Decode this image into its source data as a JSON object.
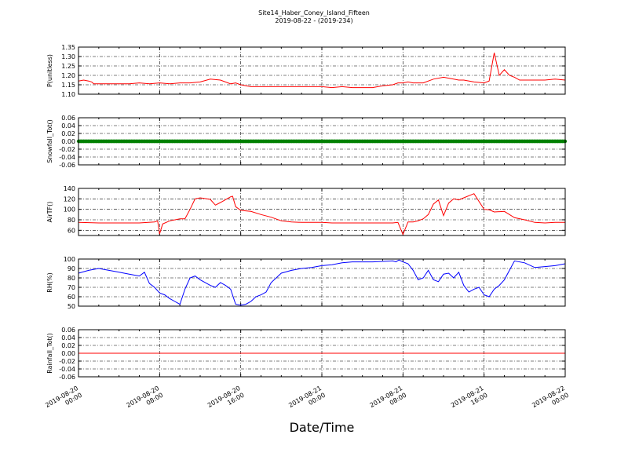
{
  "title": "Site14_Haber_Coney_Island_Fifteen",
  "subtitle": "2019-08-22 - (2019-234)",
  "xlabel": "Date/Time",
  "colors": {
    "red": "#ff0000",
    "green": "#008000",
    "blue": "#0000ff"
  },
  "chart_data": [
    {
      "type": "line",
      "ylabel": "P(unitless)",
      "ylim": [
        1.1,
        1.35
      ],
      "yticks": [
        "1.10",
        "1.15",
        "1.20",
        "1.25",
        "1.30",
        "1.35"
      ],
      "grid": true,
      "color": "red",
      "x": [
        0,
        0.5,
        1,
        1.3,
        1.5,
        2,
        3,
        4,
        5,
        6,
        7,
        8,
        9,
        10,
        11,
        12,
        13,
        14,
        15,
        15.5,
        16,
        17,
        17.5,
        18,
        19,
        20,
        21,
        22,
        23,
        24,
        25,
        26,
        27,
        28,
        29,
        30,
        31,
        31.5,
        32,
        32.5,
        33,
        34,
        35,
        36,
        37,
        37.5,
        38,
        39,
        40,
        40.5,
        41,
        41.5,
        42,
        42.5,
        43,
        43.5,
        44,
        45,
        46,
        47,
        48
      ],
      "values": [
        1.17,
        1.175,
        1.17,
        1.165,
        1.155,
        1.155,
        1.155,
        1.155,
        1.155,
        1.16,
        1.155,
        1.16,
        1.155,
        1.16,
        1.16,
        1.165,
        1.18,
        1.175,
        1.155,
        1.16,
        1.15,
        1.14,
        1.14,
        1.14,
        1.14,
        1.14,
        1.14,
        1.14,
        1.14,
        1.14,
        1.135,
        1.14,
        1.135,
        1.135,
        1.135,
        1.145,
        1.15,
        1.16,
        1.16,
        1.165,
        1.16,
        1.16,
        1.18,
        1.19,
        1.18,
        1.175,
        1.175,
        1.165,
        1.16,
        1.17,
        1.32,
        1.2,
        1.23,
        1.2,
        1.19,
        1.175,
        1.175,
        1.175,
        1.175,
        1.18,
        1.175
      ]
    },
    {
      "type": "scatter",
      "ylabel": "Snowfall_Tot()",
      "ylim": [
        -0.06,
        0.06
      ],
      "yticks": [
        "-0.06",
        "-0.04",
        "-0.02",
        "0.00",
        "0.02",
        "0.04",
        "0.06"
      ],
      "grid": true,
      "color": "green",
      "constant_value": 0.0,
      "x_start": 0,
      "x_end": 48
    },
    {
      "type": "line",
      "ylabel": "AirTF()",
      "ylim": [
        50,
        140
      ],
      "yticks": [
        "60",
        "80",
        "100",
        "120",
        "140"
      ],
      "grid": true,
      "color": "red",
      "x": [
        0,
        2,
        4,
        6,
        7.5,
        7.8,
        8,
        8.3,
        9,
        10,
        10.5,
        11,
        11.5,
        12,
        13,
        13.5,
        14,
        15,
        15.2,
        15.5,
        16,
        17,
        18,
        19,
        20,
        21,
        22,
        23,
        24,
        25,
        26,
        27,
        28,
        29,
        31,
        31.5,
        32,
        32.5,
        33,
        33.5,
        34,
        34.5,
        35,
        35.5,
        36,
        36.5,
        37,
        37.5,
        38,
        39,
        40,
        40.5,
        41,
        42,
        43,
        44,
        45,
        46,
        47,
        48
      ],
      "values": [
        75,
        74,
        74,
        74,
        76,
        78,
        53,
        72,
        78,
        82,
        82,
        100,
        120,
        122,
        119,
        108,
        113,
        124,
        125,
        105,
        98,
        96,
        90,
        85,
        78,
        76,
        75,
        75,
        75,
        74,
        74,
        74,
        74,
        74,
        74,
        75,
        52,
        76,
        76,
        78,
        82,
        90,
        110,
        118,
        88,
        112,
        120,
        118,
        122,
        130,
        100,
        99,
        95,
        96,
        84,
        80,
        75,
        74,
        75,
        75
      ]
    },
    {
      "type": "line",
      "ylabel": "RH(%)",
      "ylim": [
        50,
        100
      ],
      "yticks": [
        "50",
        "60",
        "70",
        "80",
        "90",
        "100"
      ],
      "grid": true,
      "color": "blue",
      "x": [
        0,
        1,
        2,
        3,
        4,
        5,
        6,
        6.5,
        7,
        7.5,
        8,
        8.5,
        9,
        9.5,
        10,
        10.5,
        11,
        11.5,
        12,
        13,
        13.5,
        14,
        14.5,
        15,
        15.5,
        16,
        16.5,
        17,
        17.5,
        18,
        18.5,
        19,
        20,
        21,
        22,
        23,
        24,
        25,
        26,
        27,
        28,
        29,
        31,
        31.3,
        31.6,
        32,
        32.5,
        33,
        33.5,
        34,
        34.5,
        35,
        35.5,
        36,
        36.5,
        37,
        37.5,
        38,
        38.5,
        39,
        39.5,
        40,
        40.5,
        41,
        41.5,
        42,
        43,
        44,
        45,
        46,
        47,
        48
      ],
      "values": [
        85,
        88,
        90,
        88,
        86,
        84,
        82,
        86,
        74,
        70,
        64,
        62,
        58,
        55,
        52,
        68,
        80,
        82,
        78,
        72,
        70,
        75,
        72,
        68,
        52,
        51,
        52,
        55,
        60,
        62,
        65,
        75,
        85,
        88,
        90,
        91,
        93,
        94,
        96,
        97,
        97,
        97,
        98,
        97,
        99,
        97,
        95,
        88,
        78,
        80,
        88,
        78,
        76,
        84,
        85,
        80,
        86,
        72,
        65,
        68,
        70,
        62,
        60,
        68,
        72,
        78,
        98,
        96,
        91,
        92,
        93,
        95
      ]
    },
    {
      "type": "line",
      "ylabel": "Rainfall_Tot()",
      "ylim": [
        -0.06,
        0.06
      ],
      "yticks": [
        "-0.06",
        "-0.04",
        "-0.02",
        "0.00",
        "0.02",
        "0.04",
        "0.06"
      ],
      "grid": true,
      "color": "red",
      "x": [
        0,
        48
      ],
      "values": [
        0,
        0
      ]
    }
  ],
  "xticks": [
    {
      "line1": "2019-08-20",
      "line2": "00:00",
      "t": 0
    },
    {
      "line1": "2019-08-20",
      "line2": "08:00",
      "t": 8
    },
    {
      "line1": "2019-08-20",
      "line2": "16:00",
      "t": 16
    },
    {
      "line1": "2019-08-21",
      "line2": "00:00",
      "t": 24
    },
    {
      "line1": "2019-08-21",
      "line2": "08:00",
      "t": 32
    },
    {
      "line1": "2019-08-21",
      "line2": "16:00",
      "t": 40
    },
    {
      "line1": "2019-08-22",
      "line2": "00:00",
      "t": 48
    }
  ],
  "xlim": [
    0,
    48
  ]
}
